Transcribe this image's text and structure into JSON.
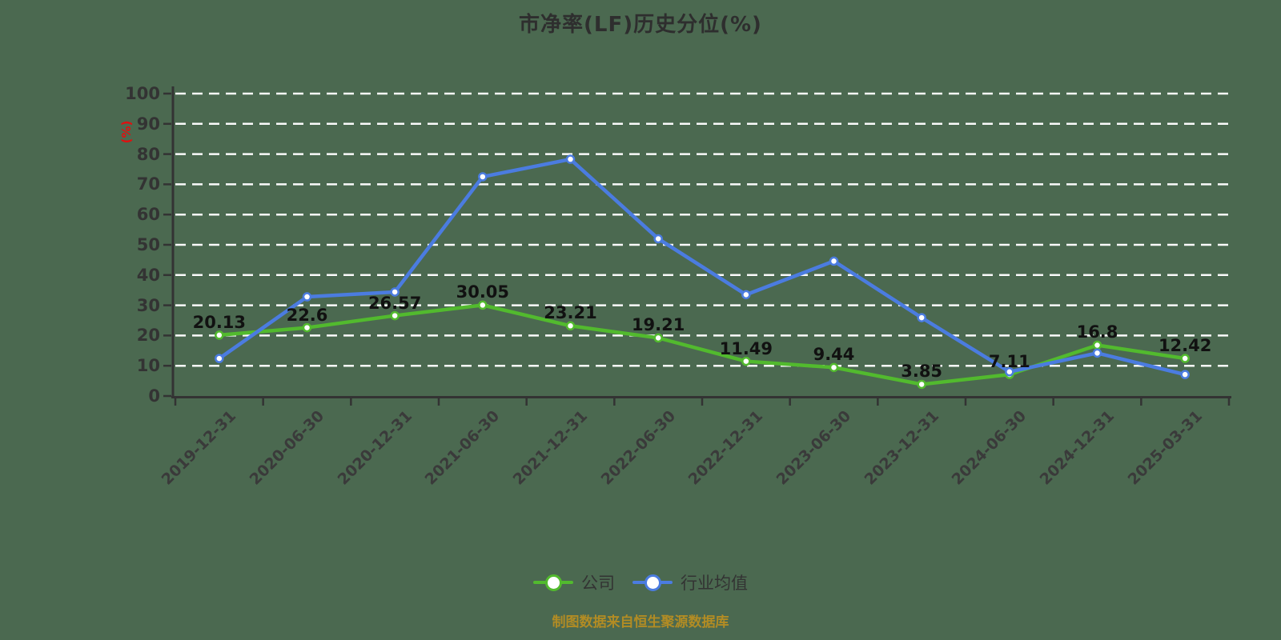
{
  "title": "市净率(LF)历史分位(%)",
  "y_axis_unit": "(%)",
  "footer_note": "制图数据来自恒生聚源数据库",
  "colors": {
    "background": "#4b6950",
    "company": "#52ba2e",
    "industry": "#4b7ce0",
    "grid": "#fafafa",
    "axis": "#333333",
    "title_text": "#2e2e2e",
    "data_label": "#111111",
    "axis_unit_red": "#e01010",
    "footer_gold": "#b28c24",
    "marker_fill": "#ffffff"
  },
  "chart_data": {
    "type": "line",
    "title": "市净率(LF)历史分位(%)",
    "ylabel": "(%)",
    "ylim": [
      0,
      100
    ],
    "ytick_step": 10,
    "grid": "horizontal-dashed-white",
    "legend_position": "bottom-center",
    "categories": [
      "2019-12-31",
      "2020-06-30",
      "2020-12-31",
      "2021-06-30",
      "2021-12-31",
      "2022-06-30",
      "2022-12-31",
      "2023-06-30",
      "2023-12-31",
      "2024-06-30",
      "2024-12-31",
      "2025-03-31"
    ],
    "series": [
      {
        "name": "公司",
        "color": "#52ba2e",
        "values": [
          20.13,
          22.6,
          26.57,
          30.05,
          23.21,
          19.21,
          11.49,
          9.44,
          3.85,
          7.11,
          16.8,
          12.42
        ],
        "point_labels": [
          "20.13",
          "22.6",
          "26.57",
          "30.05",
          "23.21",
          "19.21",
          "11.49",
          "9.44",
          "3.85",
          "7.11",
          "16.8",
          "12.42"
        ],
        "show_point_labels": true
      },
      {
        "name": "行业均值",
        "color": "#4b7ce0",
        "values": [
          12.4,
          32.8,
          34.4,
          72.5,
          78.3,
          52.0,
          33.5,
          44.6,
          25.9,
          8.0,
          14.2,
          7.1
        ],
        "show_point_labels": false
      }
    ]
  }
}
